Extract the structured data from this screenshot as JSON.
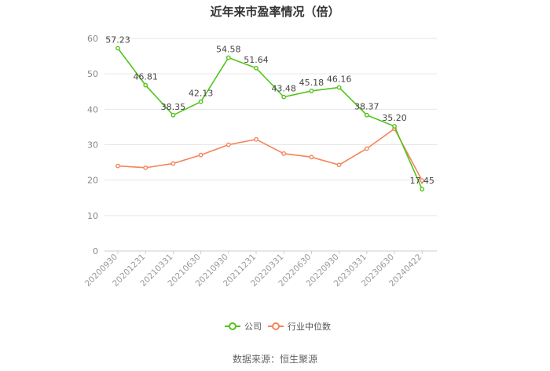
{
  "source_text": "数据来源：恒生聚源",
  "chart_data": {
    "type": "line",
    "title": "近年来市盈率情况（倍）",
    "categories": [
      "20200930",
      "20201231",
      "20210331",
      "20210630",
      "20210930",
      "20211231",
      "20220331",
      "20220630",
      "20220930",
      "20230331",
      "20230630",
      "20240422"
    ],
    "ylim": [
      0,
      60
    ],
    "yticks": [
      0,
      10,
      20,
      30,
      40,
      50,
      60
    ],
    "grid": true,
    "legend_position": "bottom",
    "series": [
      {
        "name": "公司",
        "color": "#52c41a",
        "values": [
          57.23,
          46.81,
          38.35,
          42.13,
          54.58,
          51.64,
          43.48,
          45.18,
          46.16,
          38.37,
          35.2,
          17.45
        ],
        "labels": [
          "57.23",
          "46.81",
          "38.35",
          "42.13",
          "54.58",
          "51.64",
          "43.48",
          "45.18",
          "46.16",
          "38.37",
          "35.20",
          "17.45"
        ]
      },
      {
        "name": "行业中位数",
        "color": "#f5845a",
        "values": [
          24.0,
          23.5,
          24.7,
          27.1,
          30.0,
          31.5,
          27.5,
          26.5,
          24.3,
          28.9,
          34.5,
          19.9
        ]
      }
    ]
  }
}
